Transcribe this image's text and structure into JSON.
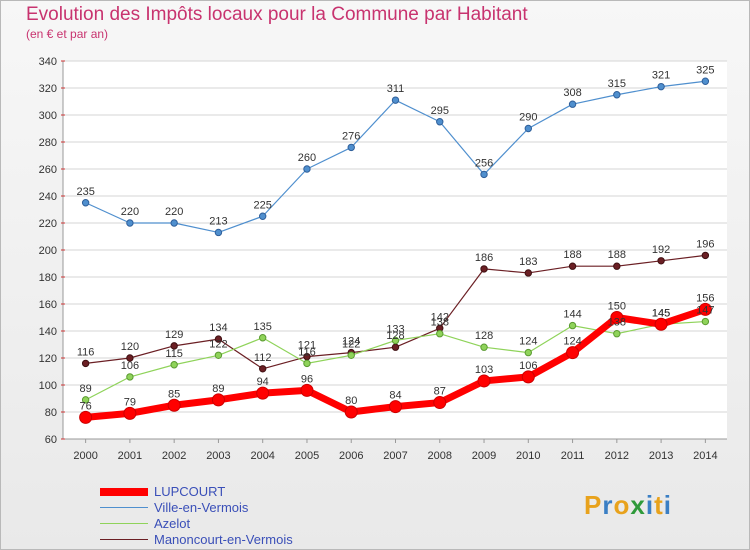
{
  "title": "Evolution des Impôts locaux pour la Commune par Habitant",
  "subtitle": "(en € et par an)",
  "logo": {
    "text": "Proxiti",
    "letters": [
      "P",
      "r",
      "o",
      "x",
      "i",
      "t",
      "i"
    ],
    "colors": [
      "#e8a21c",
      "#3b7fc4",
      "#e8a21c",
      "#2f9a3a",
      "#3b7fc4",
      "#e8a21c",
      "#3b7fc4"
    ]
  },
  "chart_data": {
    "type": "line",
    "title": "Evolution des Impôts locaux pour la Commune par Habitant",
    "subtitle": "(en € et par an)",
    "xlabel": "",
    "ylabel": "",
    "x": [
      "2000",
      "2001",
      "2002",
      "2003",
      "2004",
      "2005",
      "2006",
      "2007",
      "2008",
      "2009",
      "2010",
      "2011",
      "2012",
      "2013",
      "2014"
    ],
    "ylim": [
      60,
      340
    ],
    "yticks": [
      60,
      80,
      100,
      120,
      140,
      160,
      180,
      200,
      220,
      240,
      260,
      280,
      300,
      320,
      340
    ],
    "grid": "horizontal",
    "legend_position": "bottom-left",
    "series": [
      {
        "name": "LUPCOURT",
        "color": "#ff0000",
        "values": [
          76,
          79,
          85,
          89,
          94,
          96,
          80,
          84,
          87,
          103,
          106,
          124,
          150,
          145,
          156
        ],
        "labels": [
          "76",
          "79",
          "85",
          "89",
          "94",
          "96",
          "80",
          "84",
          "87",
          "103",
          "106",
          "124",
          "150",
          "145",
          "156"
        ]
      },
      {
        "name": "Ville-en-Vermois",
        "color": "#4f8fce",
        "values": [
          235,
          220,
          220,
          213,
          225,
          260,
          276,
          311,
          295,
          256,
          290,
          308,
          315,
          321,
          325
        ],
        "labels": [
          "235",
          "220",
          "220",
          "213",
          "225",
          "260",
          "276",
          "311",
          "295",
          "256",
          "290",
          "308",
          "315",
          "321",
          "325"
        ]
      },
      {
        "name": "Azelot",
        "color": "#8fd35a",
        "values": [
          89,
          106,
          115,
          122,
          135,
          116,
          122,
          133,
          138,
          128,
          124,
          144,
          138,
          145,
          147
        ],
        "labels": [
          "89",
          "106",
          "115",
          "122",
          "135",
          "116",
          "122",
          "133",
          "138",
          "128",
          "124",
          "144",
          "138",
          "145",
          "147"
        ]
      },
      {
        "name": "Manoncourt-en-Vermois",
        "color": "#6b1f24",
        "values": [
          116,
          120,
          129,
          134,
          112,
          121,
          124,
          128,
          142,
          186,
          183,
          188,
          188,
          192,
          196
        ],
        "labels": [
          "116",
          "120",
          "129",
          "134",
          "112",
          "121",
          "124",
          "128",
          "142",
          "186",
          "183",
          "188",
          "188",
          "192",
          "196"
        ]
      }
    ]
  }
}
